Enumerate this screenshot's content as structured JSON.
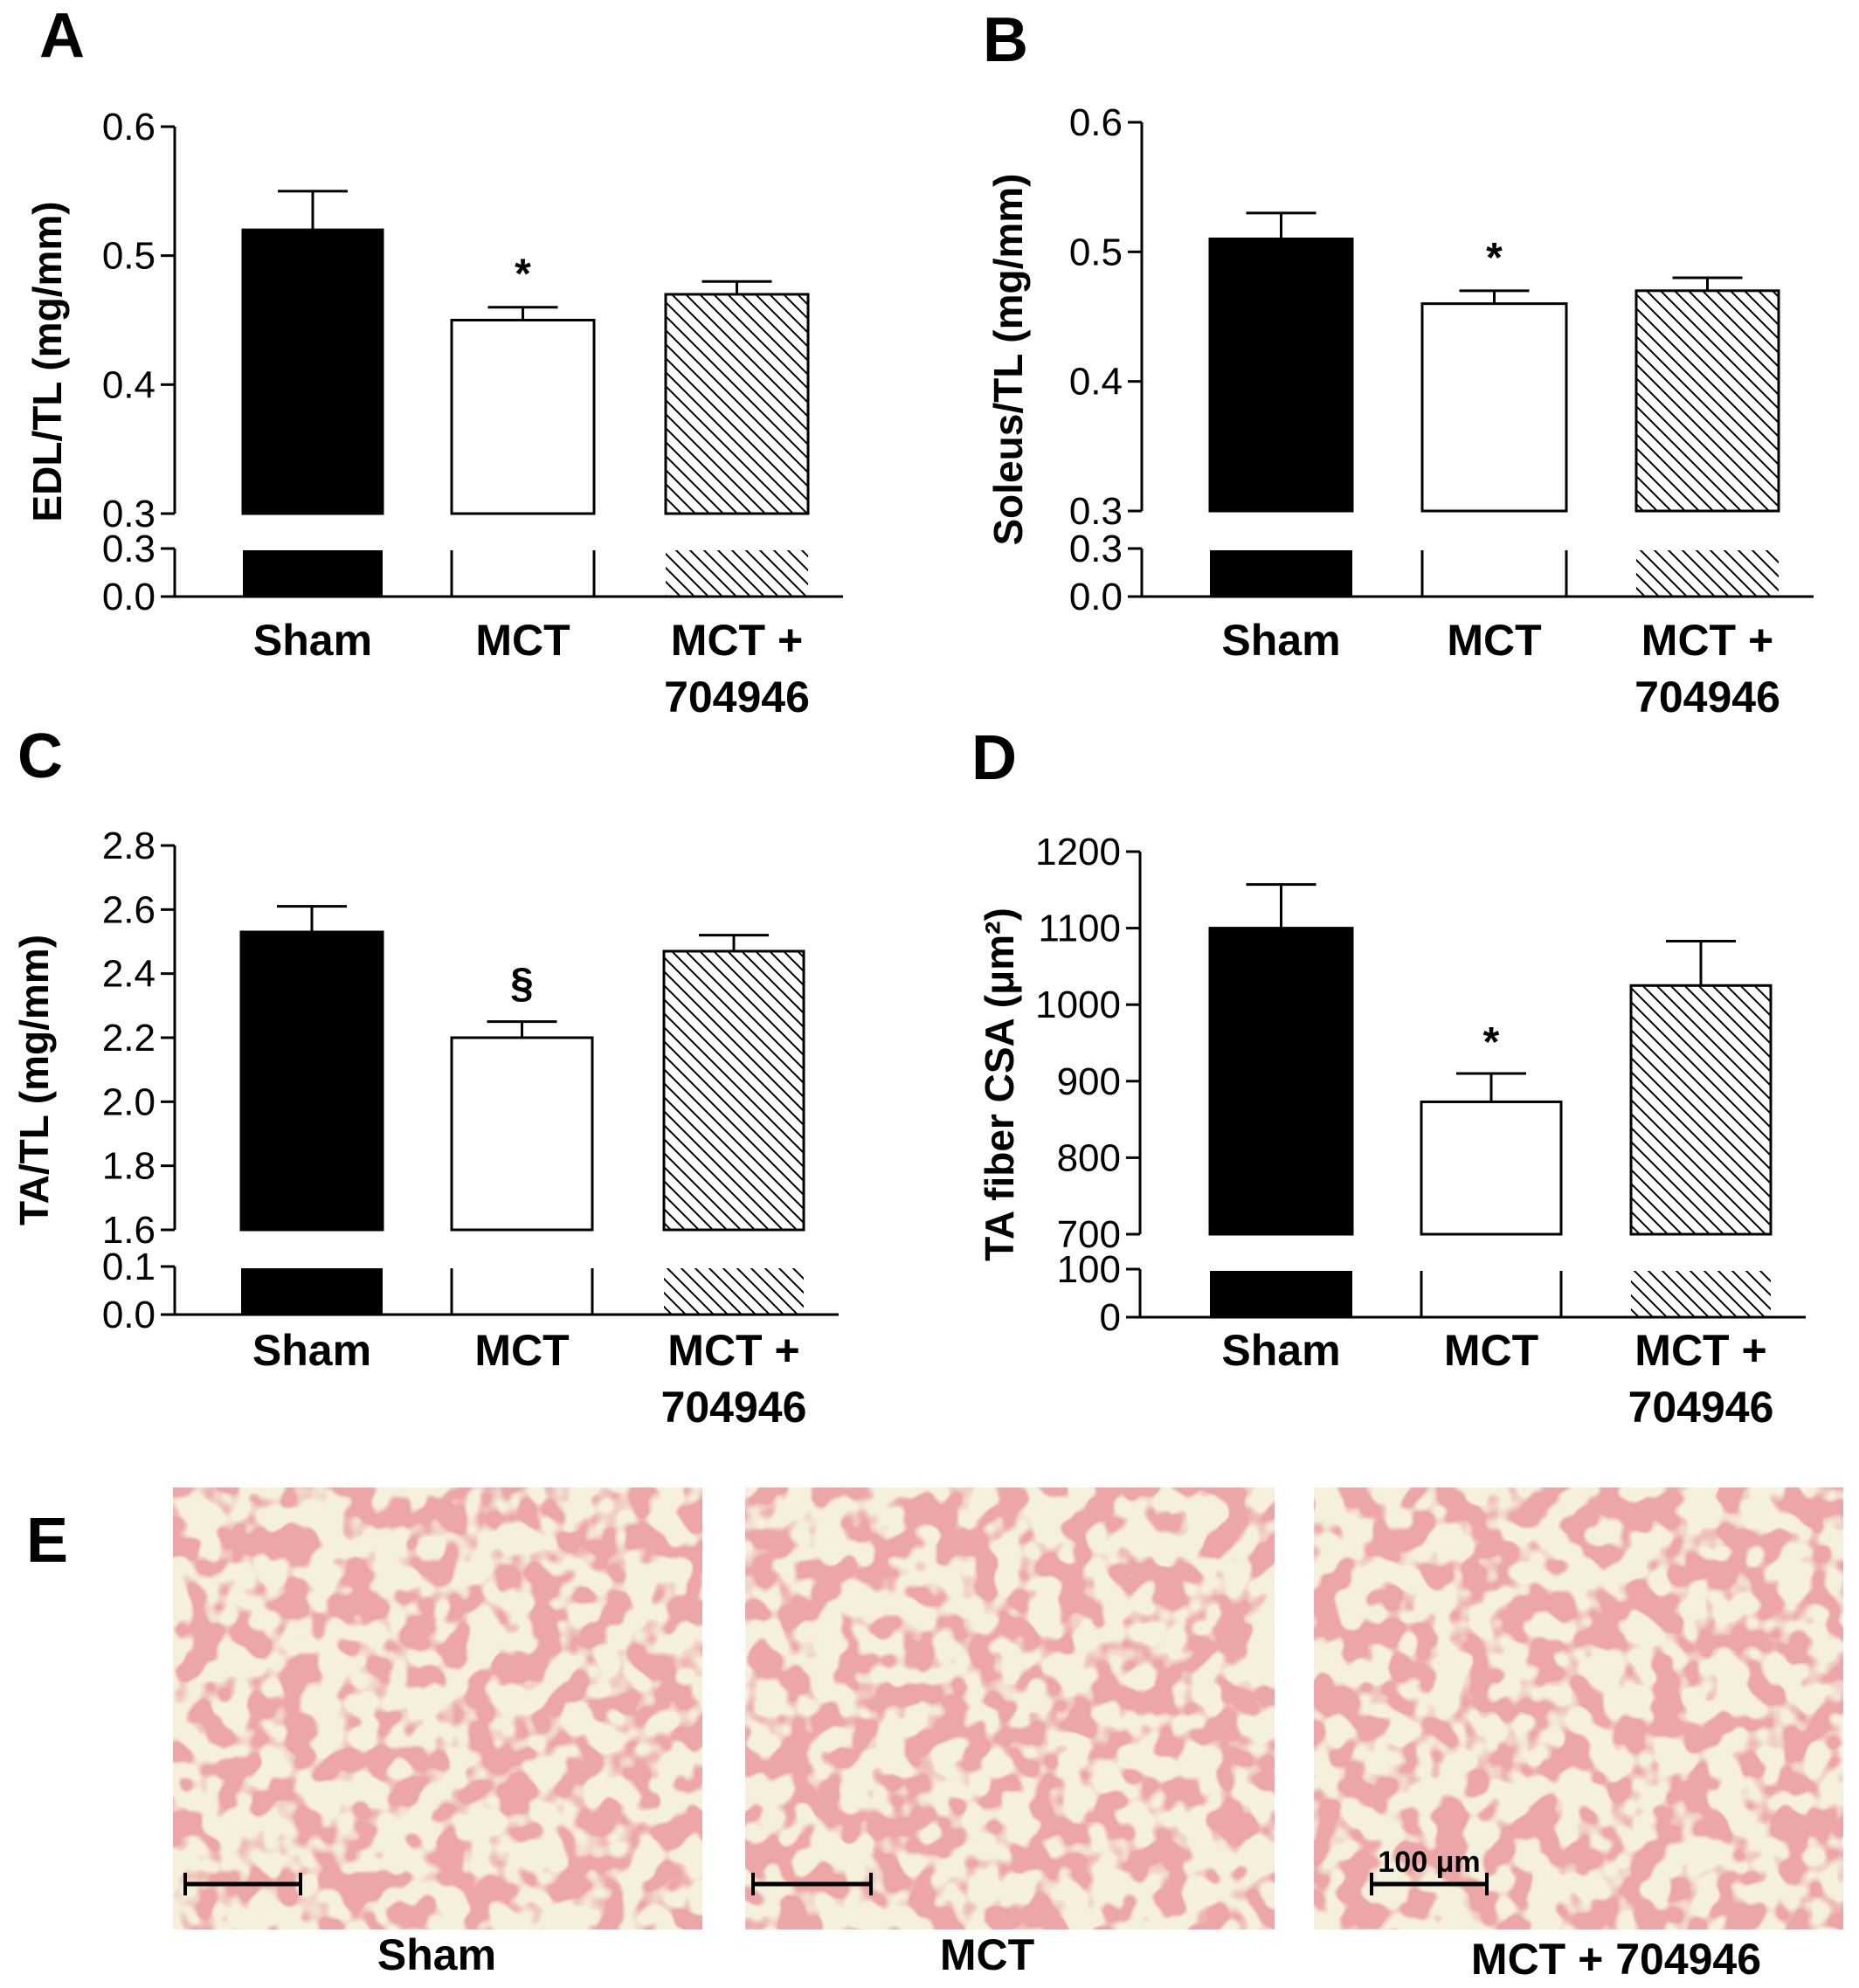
{
  "colors": {
    "sham": "#000000",
    "mct": "#ffffff",
    "treated": "hatch",
    "tissue": "#eda6a8",
    "tissue_bg": "#f3efd8"
  },
  "chart_data": [
    {
      "panel": "A",
      "type": "bar",
      "categories": [
        "Sham",
        "MCT",
        "MCT +\n704946"
      ],
      "values": [
        0.52,
        0.45,
        0.47
      ],
      "errors": [
        0.03,
        0.01,
        0.01
      ],
      "significance": [
        "",
        "*",
        ""
      ],
      "ylabel": "EDL/TL (mg/mm)",
      "ylim": [
        0.3,
        0.6
      ],
      "yticks": [
        "0.6",
        "0.5",
        "0.4",
        "0.3"
      ],
      "ylim_lower": [
        0.0,
        0.3
      ],
      "yticks_lower": [
        "0.3",
        "0.0"
      ],
      "broken_axis": true
    },
    {
      "panel": "B",
      "type": "bar",
      "categories": [
        "Sham",
        "MCT",
        "MCT +\n704946"
      ],
      "values": [
        0.51,
        0.46,
        0.47
      ],
      "errors": [
        0.02,
        0.01,
        0.01
      ],
      "significance": [
        "",
        "*",
        ""
      ],
      "ylabel": "Soleus/TL (mg/mm)",
      "ylim": [
        0.3,
        0.6
      ],
      "yticks": [
        "0.6",
        "0.5",
        "0.4",
        "0.3"
      ],
      "ylim_lower": [
        0.0,
        0.3
      ],
      "yticks_lower": [
        "0.3",
        "0.0"
      ],
      "broken_axis": true
    },
    {
      "panel": "C",
      "type": "bar",
      "categories": [
        "Sham",
        "MCT",
        "MCT +\n704946"
      ],
      "values": [
        2.53,
        2.2,
        2.47
      ],
      "errors": [
        0.08,
        0.05,
        0.05
      ],
      "significance": [
        "",
        "§",
        ""
      ],
      "ylabel": "TA/TL (mg/mm)",
      "ylim": [
        1.6,
        2.8
      ],
      "yticks": [
        "2.8",
        "2.6",
        "2.4",
        "2.2",
        "2.0",
        "1.8",
        "1.6"
      ],
      "ylim_lower": [
        0.0,
        0.1
      ],
      "yticks_lower": [
        "0.1",
        "0.0"
      ],
      "broken_axis": true
    },
    {
      "panel": "D",
      "type": "bar",
      "categories": [
        "Sham",
        "MCT",
        "MCT +\n704946"
      ],
      "values": [
        1100,
        873,
        1025
      ],
      "errors": [
        57,
        37,
        58
      ],
      "significance": [
        "",
        "*",
        ""
      ],
      "ylabel": "TA fiber CSA (μm²)",
      "ylim": [
        700,
        1200
      ],
      "yticks": [
        "1200",
        "1100",
        "1000",
        "900",
        "800",
        "700"
      ],
      "ylim_lower": [
        0,
        100
      ],
      "yticks_lower": [
        "100",
        "0"
      ],
      "broken_axis": true
    }
  ],
  "histology": {
    "panel": "E",
    "labels": [
      "Sham",
      "MCT",
      "MCT + 704946"
    ],
    "scale_bar_label": "100 μm"
  }
}
